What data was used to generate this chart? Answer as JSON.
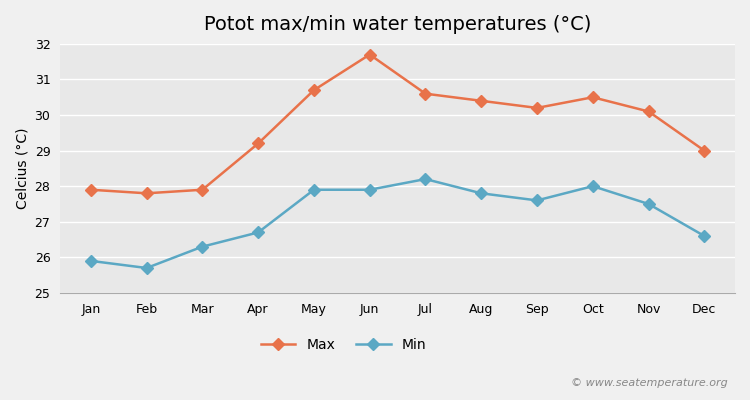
{
  "title": "Potot max/min water temperatures (°C)",
  "ylabel": "Celcius (°C)",
  "months": [
    "Jan",
    "Feb",
    "Mar",
    "Apr",
    "May",
    "Jun",
    "Jul",
    "Aug",
    "Sep",
    "Oct",
    "Nov",
    "Dec"
  ],
  "max_temps": [
    27.9,
    27.8,
    27.9,
    29.2,
    30.7,
    31.7,
    30.6,
    30.4,
    30.2,
    30.5,
    30.1,
    29.0
  ],
  "min_temps": [
    25.9,
    25.7,
    26.3,
    26.7,
    27.9,
    27.9,
    28.2,
    27.8,
    27.6,
    28.0,
    27.5,
    26.6
  ],
  "ylim": [
    25,
    32
  ],
  "yticks": [
    25,
    26,
    27,
    28,
    29,
    30,
    31,
    32
  ],
  "max_color": "#E8724A",
  "min_color": "#5BA8C4",
  "background_color": "#f0f0f0",
  "plot_bg_color": "#e8e8e8",
  "grid_color": "#ffffff",
  "watermark": "© www.seatemperature.org",
  "legend_max": "Max",
  "legend_min": "Min",
  "title_fontsize": 14,
  "label_fontsize": 10,
  "tick_fontsize": 9,
  "watermark_fontsize": 8
}
